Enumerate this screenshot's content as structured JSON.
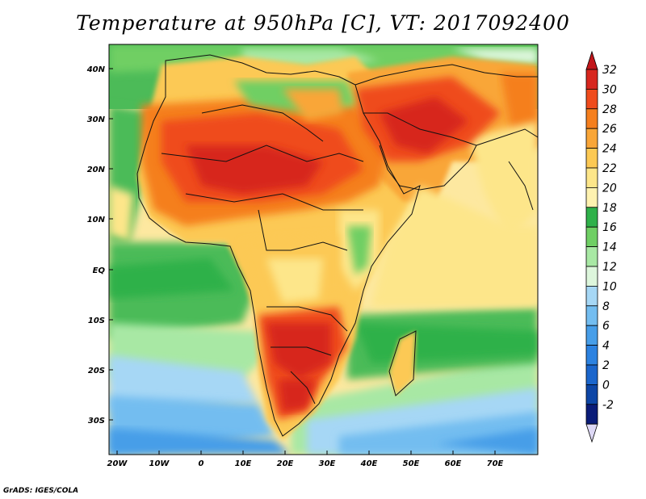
{
  "title": "Temperature at 950hPa [C], VT: 2017092400",
  "footer": "GrADS: IGES/COLA",
  "map": {
    "lon_range": [
      -23,
      80
    ],
    "lat_range": [
      -37,
      45
    ],
    "x_ticks": [
      "20W",
      "10W",
      "0",
      "10E",
      "20E",
      "30E",
      "40E",
      "50E",
      "60E",
      "70E"
    ],
    "y_ticks": [
      "40N",
      "30N",
      "20N",
      "10N",
      "EQ",
      "10S",
      "20S",
      "30S"
    ]
  },
  "colorbar": {
    "labels": [
      "32",
      "30",
      "28",
      "26",
      "24",
      "22",
      "20",
      "18",
      "16",
      "14",
      "12",
      "10",
      "8",
      "6",
      "4",
      "2",
      "0",
      "-2"
    ],
    "colors": [
      "#d7261e",
      "#ef4b1c",
      "#f57f1e",
      "#f9a638",
      "#fcc954",
      "#fde68a",
      "#fef2b0",
      "#2fb14a",
      "#6fcf64",
      "#a8e8a4",
      "#ddf6dc",
      "#a6d7f5",
      "#73bdf0",
      "#479ee8",
      "#2c82e0",
      "#1b66cc",
      "#0d46a6",
      "#0a1c78"
    ],
    "top_arrow_color": "#c2161a",
    "bottom_arrow_color": "#ddd8f5"
  }
}
